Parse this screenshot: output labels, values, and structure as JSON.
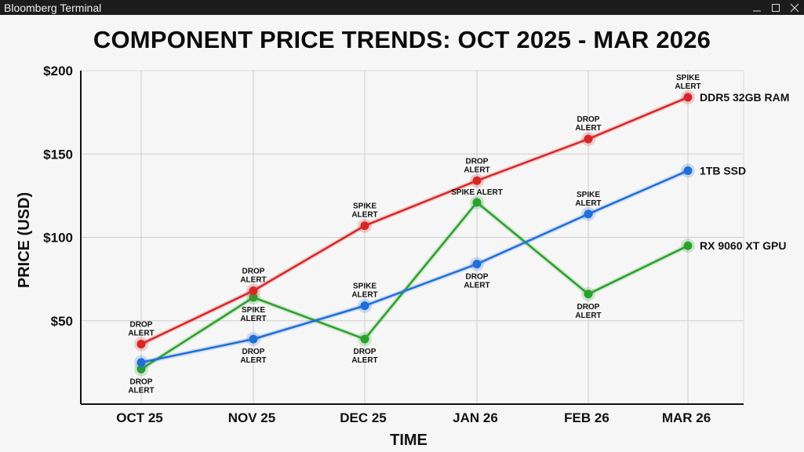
{
  "window": {
    "title": "Bloomberg Terminal",
    "controls": [
      "minimize-icon",
      "maximize-icon",
      "close-icon"
    ]
  },
  "chart_data": {
    "type": "line",
    "title": "COMPONENT PRICE TRENDS: OCT 2025 - MAR 2026",
    "xlabel": "TIME",
    "ylabel": "PRICE (USD)",
    "categories": [
      "OCT 25",
      "NOV 25",
      "DEC 25",
      "JAN 26",
      "FEB 26",
      "MAR 26"
    ],
    "ylim": [
      0,
      200
    ],
    "yticks": [
      50,
      100,
      150,
      200
    ],
    "ytick_labels": [
      "$50",
      "$100",
      "$150",
      "$200"
    ],
    "grid": true,
    "series": [
      {
        "name": "DDR5 32GB RAM",
        "color": "#d62728",
        "values": [
          36,
          68,
          107,
          134,
          159,
          184
        ],
        "annotations": [
          "DROP ALERT",
          "DROP ALERT",
          "SPIKE ALERT",
          "DROP ALERT",
          "DROP ALERT",
          "SPIKE ALERT"
        ]
      },
      {
        "name": "1TB SSD",
        "color": "#1f6fd6",
        "values": [
          25,
          39,
          59,
          84,
          114,
          140
        ],
        "annotations": [
          "",
          "DROP ALERT",
          "SPIKE ALERT",
          "DROP ALERT",
          "SPIKE ALERT",
          ""
        ]
      },
      {
        "name": "RX 9060 XT GPU",
        "color": "#2ca02c",
        "values": [
          21,
          64,
          39,
          121,
          66,
          95
        ],
        "annotations": [
          "DROP ALERT",
          "SPIKE ALERT",
          "DROP ALERT",
          "SPIKE ALERT",
          "DROP ALERT",
          ""
        ]
      }
    ]
  }
}
